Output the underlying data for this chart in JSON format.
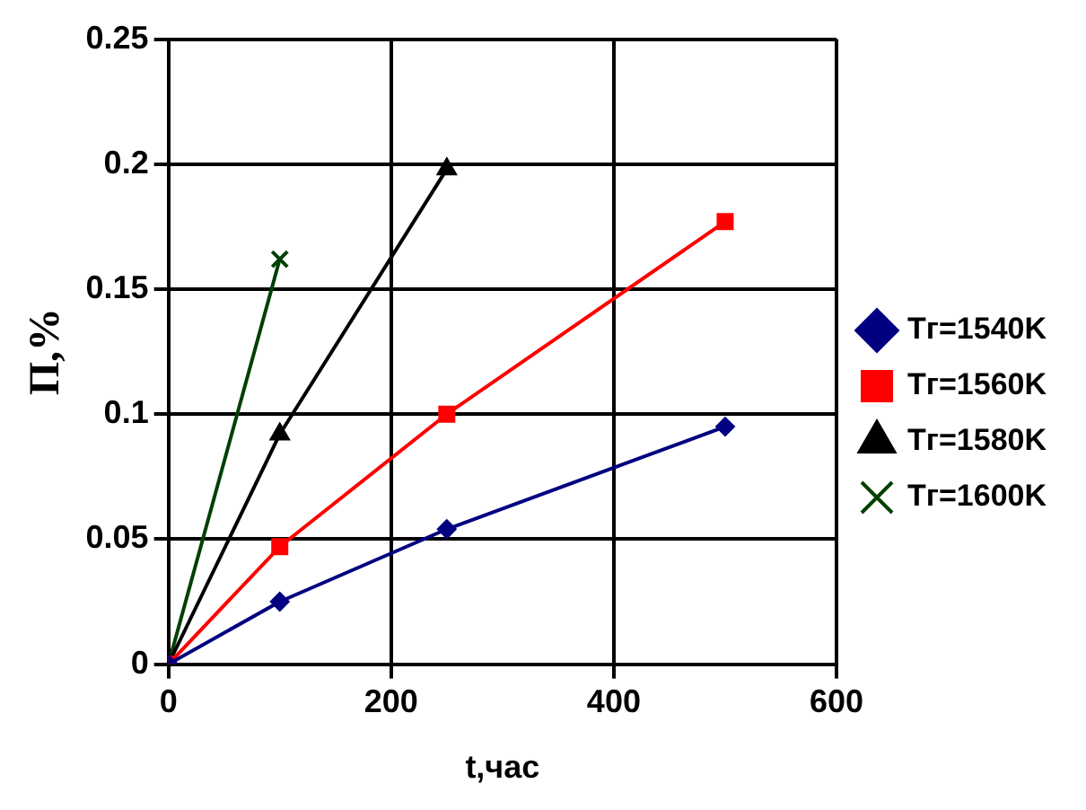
{
  "chart_data": {
    "type": "line",
    "xlabel": "t,час",
    "ylabel": "П,%",
    "xlim": [
      0,
      600
    ],
    "xticks": [
      0,
      200,
      400,
      600
    ],
    "ylim": [
      0,
      0.25
    ],
    "yticks": [
      0,
      0.05,
      0.1,
      0.15,
      0.2,
      0.25
    ],
    "grid": true,
    "legend": "right",
    "line_style": "solid",
    "series": [
      {
        "name": "Тг=1540K",
        "color": "#000080",
        "marker": "diamond",
        "x": [
          0,
          100,
          250,
          500
        ],
        "values": [
          0,
          0.025,
          0.054,
          0.095
        ]
      },
      {
        "name": "Тг=1560K",
        "color": "#ff0000",
        "marker": "square",
        "x": [
          0,
          100,
          250,
          500
        ],
        "values": [
          0,
          0.047,
          0.1,
          0.177
        ]
      },
      {
        "name": "Тг=1580K",
        "color": "#000000",
        "marker": "triangle",
        "x": [
          0,
          100,
          250
        ],
        "values": [
          0,
          0.092,
          0.198
        ]
      },
      {
        "name": "Тг=1600K",
        "color": "#004000",
        "marker": "cross",
        "x": [
          0,
          100
        ],
        "values": [
          0,
          0.162
        ]
      }
    ]
  }
}
